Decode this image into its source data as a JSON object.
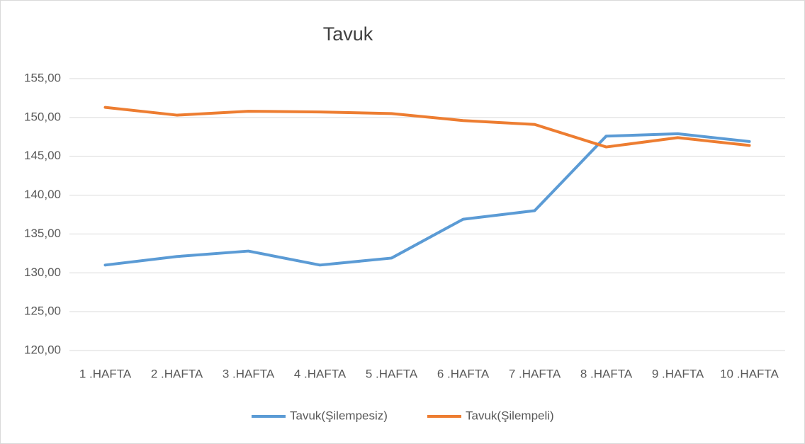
{
  "chart_data": {
    "type": "line",
    "title": "Tavuk",
    "categories": [
      "1 .HAFTA",
      "2 .HAFTA",
      "3 .HAFTA",
      "4 .HAFTA",
      "5 .HAFTA",
      "6 .HAFTA",
      "7 .HAFTA",
      "8 .HAFTA",
      "9 .HAFTA",
      "10 .HAFTA"
    ],
    "series": [
      {
        "name": "Tavuk(Şilempesiz)",
        "color": "#5b9bd5",
        "values": [
          131.0,
          132.1,
          132.8,
          131.0,
          131.9,
          136.9,
          138.0,
          147.6,
          147.9,
          146.9
        ]
      },
      {
        "name": "Tavuk(Şilempeli)",
        "color": "#ed7d31",
        "values": [
          151.3,
          150.3,
          150.8,
          150.7,
          150.5,
          149.6,
          149.1,
          146.2,
          147.4,
          146.4
        ]
      }
    ],
    "ylim": [
      120,
      155
    ],
    "yticks": [
      {
        "value": 120,
        "label": "120,00"
      },
      {
        "value": 125,
        "label": "125,00"
      },
      {
        "value": 130,
        "label": "130,00"
      },
      {
        "value": 135,
        "label": "135,00"
      },
      {
        "value": 140,
        "label": "140,00"
      },
      {
        "value": 145,
        "label": "145,00"
      },
      {
        "value": 150,
        "label": "150,00"
      },
      {
        "value": 155,
        "label": "155,00"
      }
    ],
    "grid": true,
    "legend": "bottom"
  }
}
